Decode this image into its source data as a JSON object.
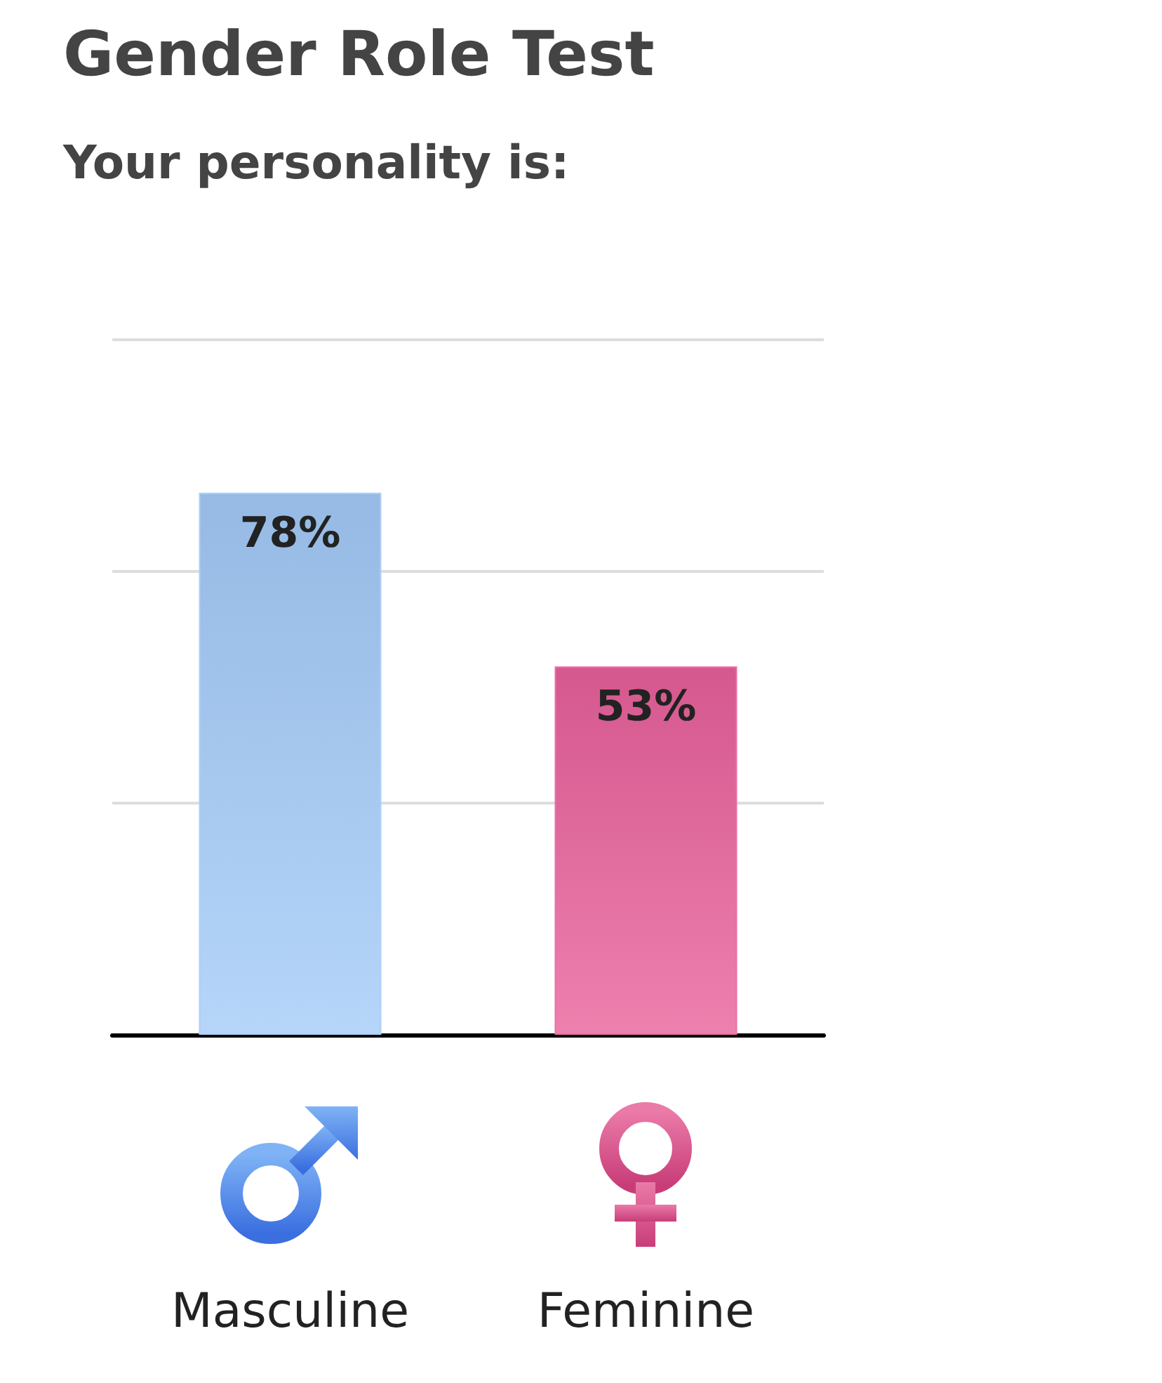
{
  "chart_data": {
    "type": "bar",
    "title": "Gender Role Test",
    "subtitle": "Your personality is:",
    "categories": [
      "Masculine",
      "Feminine"
    ],
    "values": [
      78,
      53
    ],
    "value_labels": [
      "78%",
      "53%"
    ],
    "colors": [
      "#a3caf8",
      "#e8609a"
    ],
    "ylim": [
      0,
      100
    ],
    "yticks": [
      {
        "value": 0,
        "label": null
      },
      {
        "value": 33.3,
        "label": null
      },
      {
        "value": 66.7,
        "label": null
      },
      {
        "value": 100,
        "label": null
      }
    ],
    "grid": "y"
  }
}
